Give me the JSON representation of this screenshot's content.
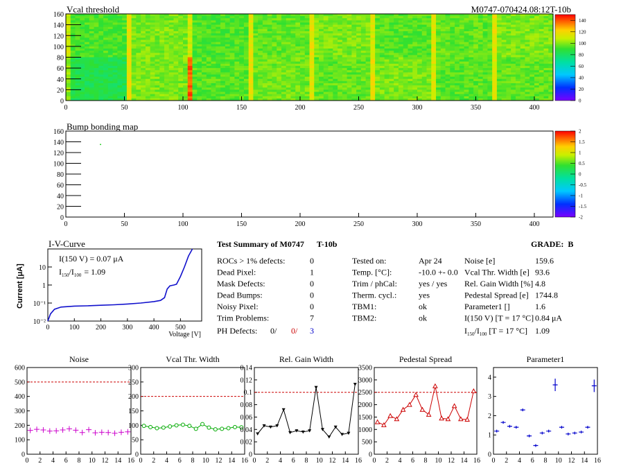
{
  "header": {
    "map_title": "Vcal threshold",
    "module_id": "M0747-070424.08:12T-10b",
    "bump_title": "Bump bonding map"
  },
  "colors": {
    "magenta": "#cc00cc",
    "green": "#00aa00",
    "black": "#000000",
    "red": "#cc0000",
    "blue": "#0000cc",
    "ref_line": "#cc0000"
  },
  "vcal_map": {
    "x_ticks": [
      0,
      50,
      100,
      150,
      200,
      250,
      300,
      350,
      400
    ],
    "y_ticks": [
      0,
      20,
      40,
      60,
      80,
      100,
      120,
      140,
      160
    ],
    "xlim": [
      0,
      416
    ],
    "ylim": [
      0,
      160
    ],
    "scale_ticks": [
      0,
      20,
      40,
      60,
      80,
      100,
      120,
      140
    ],
    "scale_range": [
      0,
      150
    ]
  },
  "bump_map": {
    "x_ticks": [
      0,
      50,
      100,
      150,
      200,
      250,
      300,
      350,
      400
    ],
    "y_ticks": [
      0,
      20,
      40,
      60,
      80,
      100,
      120,
      140,
      160
    ],
    "xlim": [
      0,
      416
    ],
    "ylim": [
      0,
      160
    ],
    "scale_ticks": [
      "-2",
      "-1.5",
      "-1",
      "-0.5",
      "0",
      "0.5",
      "1",
      "1.5",
      "2"
    ],
    "scale_range": [
      -2,
      2
    ],
    "marked_pixel": {
      "x": 29,
      "y": 136
    }
  },
  "iv_curve": {
    "title": "I-V-Curve",
    "ylabel": "Current [μA]",
    "xlabel": "Voltage [V]",
    "x_ticks": [
      "0",
      "100",
      "200",
      "300",
      "400",
      "500"
    ],
    "y_ticks": [
      "10",
      "1",
      "10⁻¹",
      "10⁻²"
    ],
    "annotation_1": "I(150 V) = 0.07 μA",
    "annotation_2_prefix": "I",
    "annotation_2_sub1": "150",
    "annotation_2_sub2": "100",
    "annotation_2_value": "=  1.09",
    "points": [
      [
        0,
        0.01
      ],
      [
        10,
        0.025
      ],
      [
        25,
        0.045
      ],
      [
        50,
        0.06
      ],
      [
        100,
        0.068
      ],
      [
        150,
        0.07
      ],
      [
        200,
        0.075
      ],
      [
        250,
        0.08
      ],
      [
        300,
        0.088
      ],
      [
        350,
        0.1
      ],
      [
        400,
        0.12
      ],
      [
        425,
        0.14
      ],
      [
        440,
        0.2
      ],
      [
        450,
        0.6
      ],
      [
        460,
        0.9
      ],
      [
        475,
        1.0
      ],
      [
        485,
        1.1
      ],
      [
        500,
        3
      ],
      [
        515,
        10
      ],
      [
        530,
        40
      ],
      [
        545,
        100
      ]
    ]
  },
  "summary": {
    "title": "Test Summary of M0747",
    "tag": "T-10b",
    "grade_label": "GRADE:",
    "grade": "B",
    "left": [
      {
        "label": "ROCs > 1% defects:",
        "value": "0"
      },
      {
        "label": "Dead Pixel:",
        "value": "1"
      },
      {
        "label": "Mask Defects:",
        "value": "0"
      },
      {
        "label": "Dead Bumps:",
        "value": "0"
      },
      {
        "label": "Noisy Pixel:",
        "value": "0"
      },
      {
        "label": "Trim Problems:",
        "value": "7"
      }
    ],
    "ph_defects": {
      "label": "PH Defects:",
      "v1": "0/",
      "v2": "0/",
      "v3": "3"
    },
    "middle": [
      {
        "label": "Tested on:",
        "value": "Apr 24"
      },
      {
        "label": "Temp. [°C]:",
        "value": "-10.0 +- 0.0"
      },
      {
        "label": "Trim / phCal:",
        "value": "yes / yes"
      },
      {
        "label": "Therm. cycl.:",
        "value": "yes"
      },
      {
        "label": "TBM1:",
        "value": "ok"
      },
      {
        "label": "TBM2:",
        "value": "ok"
      }
    ],
    "right": [
      {
        "label": "Noise [e]",
        "value": "159.6"
      },
      {
        "label": "Vcal Thr. Width [e]",
        "value": "93.6"
      },
      {
        "label": "Rel. Gain Width [%]",
        "value": "4.8"
      },
      {
        "label": "Pedestal Spread [e]",
        "value": "1744.8"
      },
      {
        "label": "Parameter1 []",
        "value": "1.6"
      },
      {
        "label": "I(150 V)  [T = 17 °C]",
        "value": "0.84 μA"
      }
    ],
    "ratio_row": {
      "prefix": "I",
      "sub1": "150",
      "sub2": "100",
      "suffix": "  [T = 17 °C]",
      "value": "1.09"
    }
  },
  "chart_data": [
    {
      "type": "scatter",
      "title": "Noise",
      "x": [
        0,
        1,
        2,
        3,
        4,
        5,
        6,
        7,
        8,
        9,
        10,
        11,
        12,
        13,
        14,
        15
      ],
      "values": [
        165,
        172,
        168,
        160,
        162,
        168,
        176,
        166,
        150,
        170,
        148,
        152,
        150,
        145,
        152,
        155
      ],
      "xlim": [
        0,
        16
      ],
      "ylim": [
        0,
        600
      ],
      "y_ticks": [
        "0",
        "100",
        "200",
        "300",
        "400",
        "500",
        "600"
      ],
      "x_ticks": [
        "0",
        "2",
        "4",
        "6",
        "8",
        "10",
        "12",
        "14",
        "16"
      ],
      "ref_line": 500,
      "marker": "cross",
      "color_key": "magenta",
      "connect": false
    },
    {
      "type": "line",
      "title": "Vcal Thr. Width",
      "x": [
        0,
        1,
        2,
        3,
        4,
        5,
        6,
        7,
        8,
        9,
        10,
        11,
        12,
        13,
        14,
        15
      ],
      "values": [
        98,
        94,
        90,
        92,
        96,
        100,
        102,
        98,
        88,
        104,
        92,
        86,
        88,
        90,
        94,
        93
      ],
      "xlim": [
        0,
        16
      ],
      "ylim": [
        0,
        300
      ],
      "y_ticks": [
        "0",
        "50",
        "100",
        "150",
        "200",
        "250",
        "300"
      ],
      "x_ticks": [
        "0",
        "2",
        "4",
        "6",
        "8",
        "10",
        "12",
        "14",
        "16"
      ],
      "ref_line": 200,
      "marker": "circle",
      "color_key": "green",
      "connect": true
    },
    {
      "type": "line",
      "title": "Rel. Gain Width",
      "x": [
        0,
        1,
        2,
        3,
        4,
        5,
        6,
        7,
        8,
        9,
        10,
        11,
        12,
        13,
        14,
        15
      ],
      "values": [
        0.033,
        0.046,
        0.044,
        0.046,
        0.072,
        0.035,
        0.038,
        0.036,
        0.038,
        0.108,
        0.04,
        0.028,
        0.044,
        0.032,
        0.034,
        0.113
      ],
      "xlim": [
        0,
        16
      ],
      "ylim": [
        0,
        0.14
      ],
      "y_ticks": [
        "0",
        "0.02",
        "0.04",
        "0.06",
        "0.08",
        "0.1",
        "0.12",
        "0.14"
      ],
      "x_ticks": [
        "0",
        "2",
        "4",
        "6",
        "8",
        "10",
        "12",
        "14",
        "16"
      ],
      "ref_line": 0.1,
      "marker": "triangle-down",
      "color_key": "black",
      "connect": true
    },
    {
      "type": "line",
      "title": "Pedestal Spread",
      "x": [
        0,
        1,
        2,
        3,
        4,
        5,
        6,
        7,
        8,
        9,
        10,
        11,
        12,
        13,
        14,
        15
      ],
      "values": [
        1300,
        1180,
        1550,
        1420,
        1800,
        2000,
        2400,
        1800,
        1600,
        2750,
        1450,
        1420,
        1950,
        1420,
        1400,
        2550
      ],
      "xlim": [
        0,
        16
      ],
      "ylim": [
        0,
        3500
      ],
      "y_ticks": [
        "0",
        "500",
        "1000",
        "1500",
        "2000",
        "2500",
        "3000",
        "3500"
      ],
      "x_ticks": [
        "0",
        "2",
        "4",
        "6",
        "8",
        "10",
        "12",
        "14",
        "16"
      ],
      "ref_line": 2500,
      "marker": "triangle-up",
      "color_key": "red",
      "connect": true
    },
    {
      "type": "scatter",
      "title": "Parameter1",
      "x": [
        0,
        1,
        2,
        3,
        4,
        5,
        6,
        7,
        8,
        9,
        10,
        11,
        12,
        13,
        14,
        15
      ],
      "values": [
        1.2,
        1.65,
        1.45,
        1.4,
        2.3,
        0.95,
        0.45,
        1.1,
        1.2,
        3.6,
        1.4,
        1.05,
        1.1,
        1.15,
        1.4,
        3.55
      ],
      "xlim": [
        0,
        16
      ],
      "ylim": [
        0,
        4.5
      ],
      "y_ticks": [
        "0",
        "1",
        "2",
        "3",
        "4"
      ],
      "x_ticks": [
        "0",
        "2",
        "4",
        "6",
        "8",
        "10",
        "12",
        "14",
        "16"
      ],
      "ref_line": null,
      "marker": "cross-err",
      "color_key": "blue",
      "connect": false
    }
  ]
}
